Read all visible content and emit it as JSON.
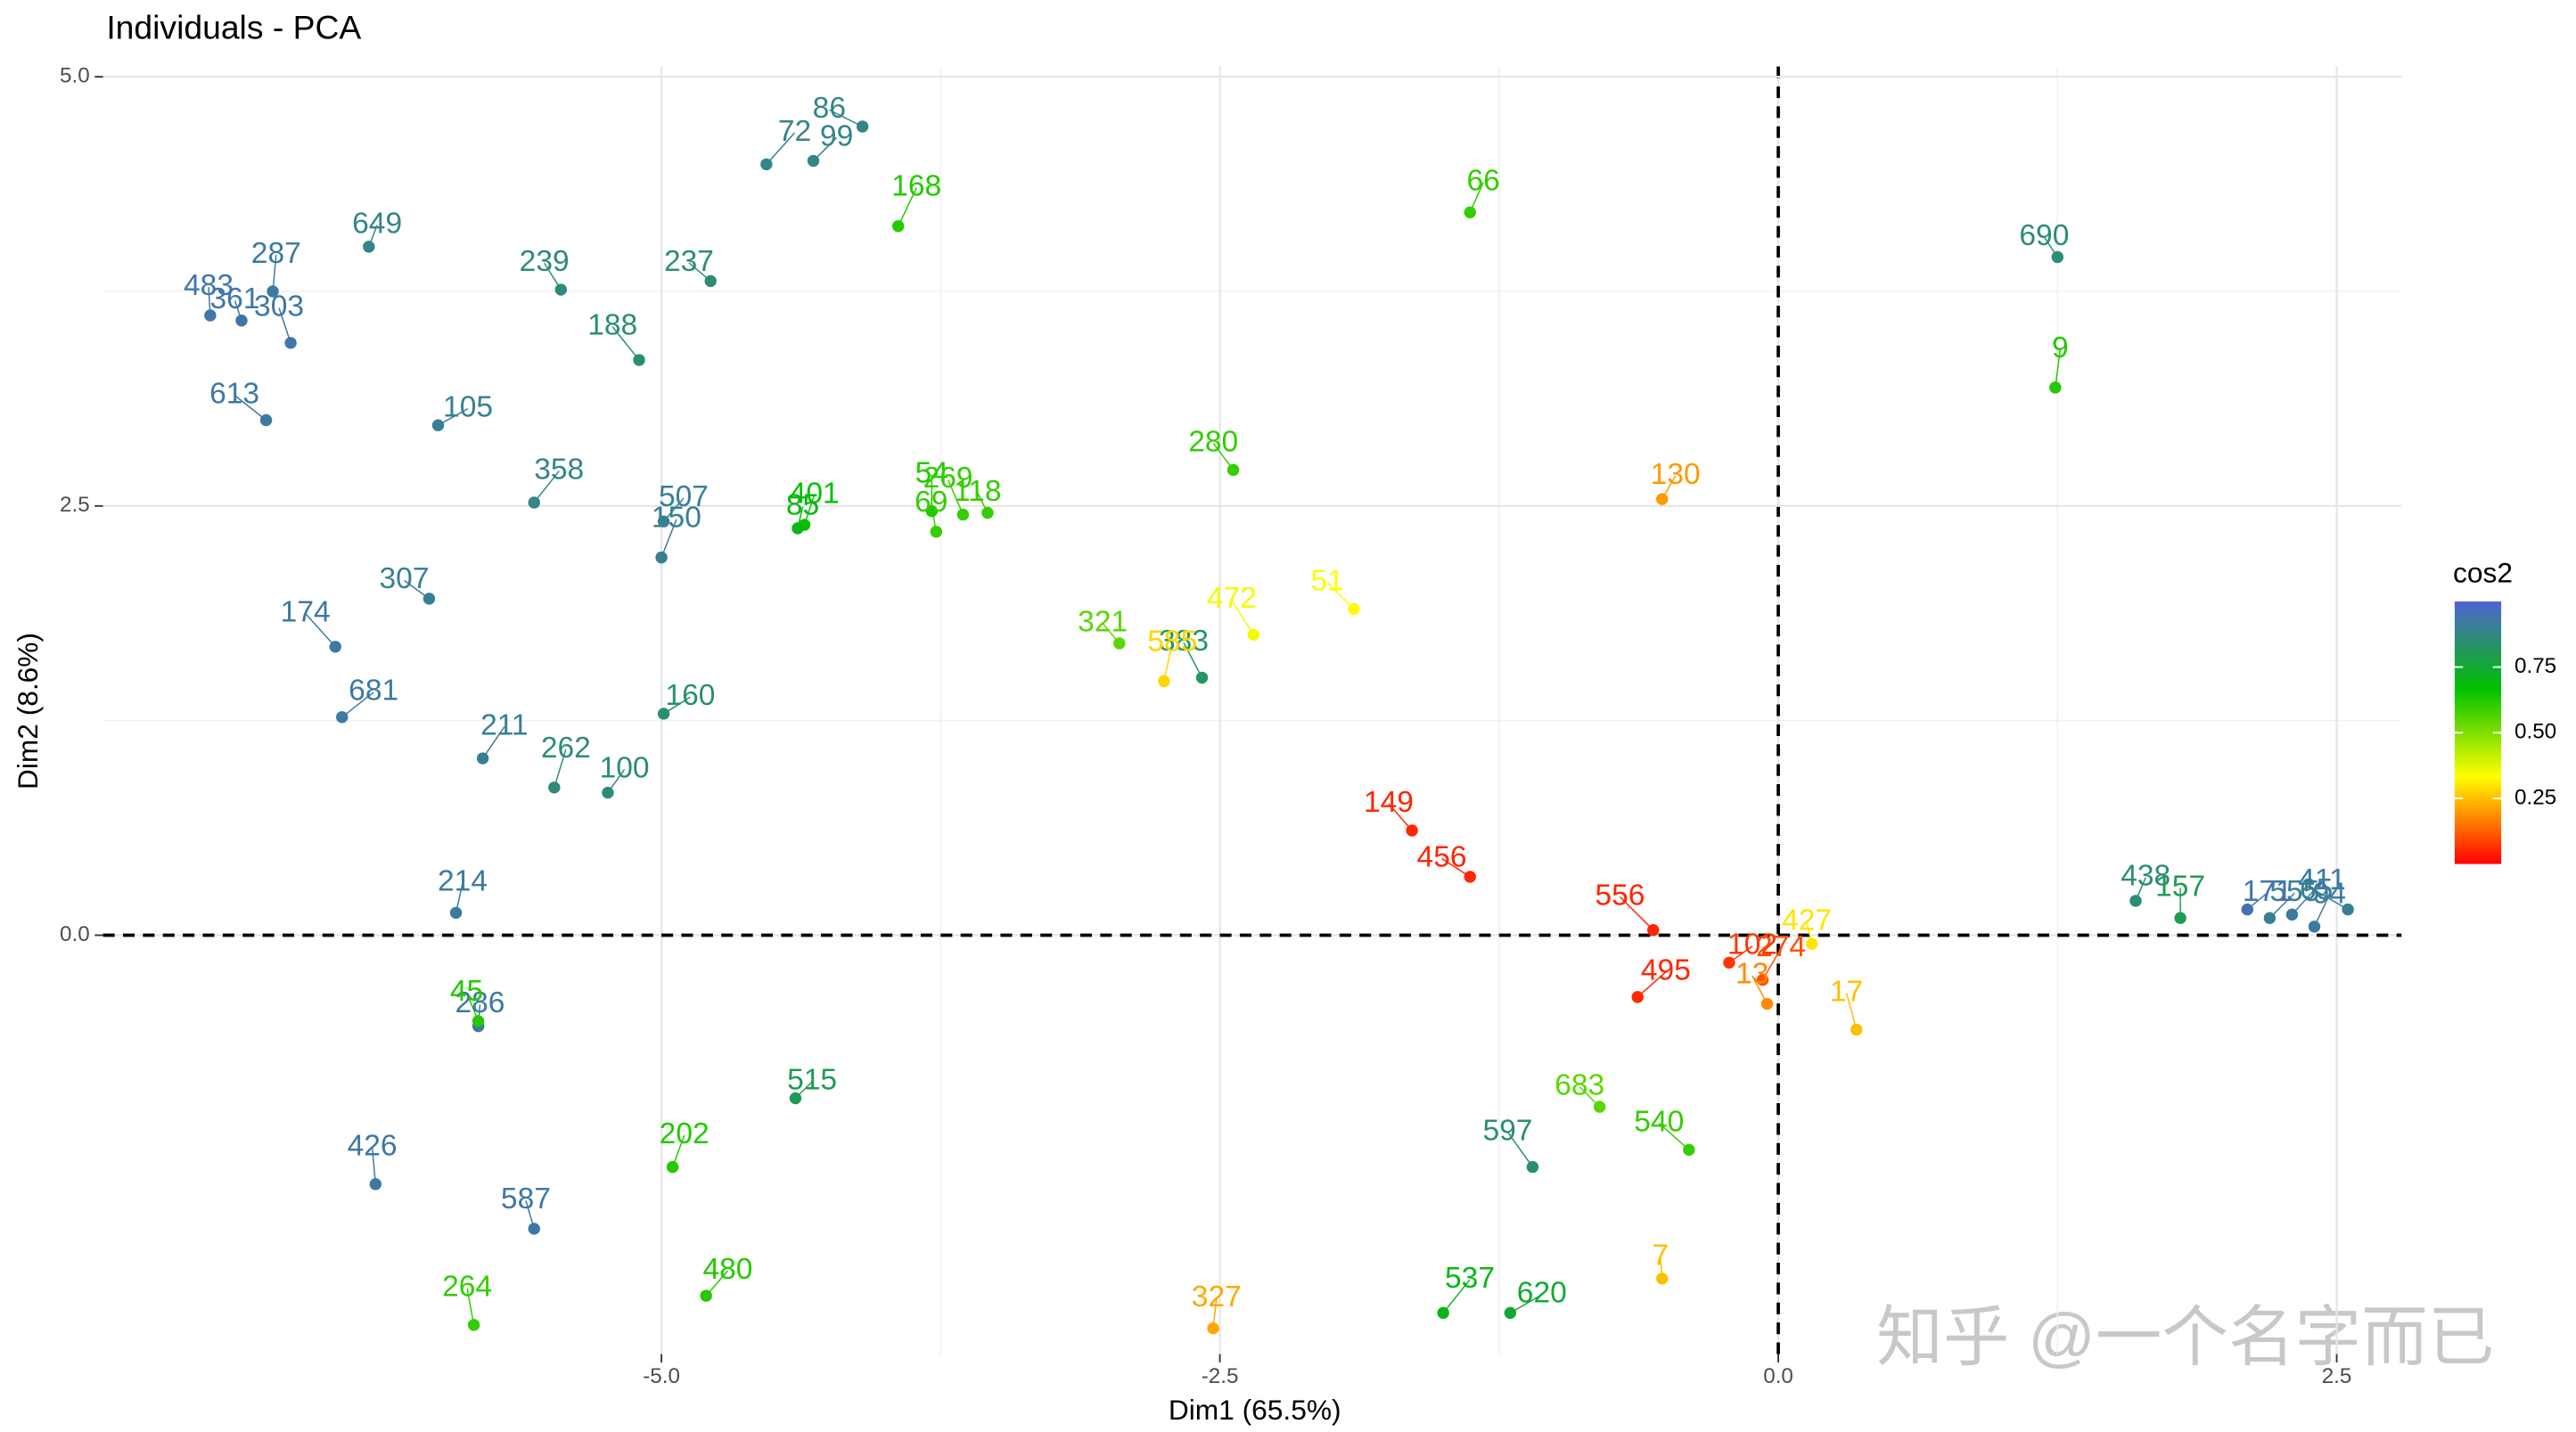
{
  "chart_data": {
    "type": "scatter",
    "title": "Individuals - PCA",
    "x_label": "Dim1 (65.5%)",
    "y_label": "Dim2 (8.6%)",
    "legend_title": "cos2",
    "watermark": "知乎 @一个名字而已",
    "xlim": [
      -7.5,
      2.79
    ],
    "ylim": [
      -2.44,
      5.06
    ],
    "xticks": [
      {
        "value": -5,
        "label": "-5.0"
      },
      {
        "value": -2.5,
        "label": "-2.5"
      },
      {
        "value": 0,
        "label": "0.0"
      },
      {
        "value": 2.5,
        "label": "2.5"
      }
    ],
    "yticks": [
      {
        "value": 0,
        "label": "0.0"
      },
      {
        "value": 2.5,
        "label": "2.5"
      },
      {
        "value": 5,
        "label": "5.0"
      }
    ],
    "grid": true,
    "colorlim": [
      0,
      1
    ],
    "colorticks": [
      {
        "value": 0.25,
        "label": "0.25"
      },
      {
        "value": 0.5,
        "label": "0.50"
      },
      {
        "value": 0.75,
        "label": "0.75"
      }
    ],
    "colors": [
      "#ff0000",
      "#ffff00",
      "#00c000",
      "#4f64d4"
    ],
    "labels": [
      "86",
      "72",
      "99",
      "168",
      "66",
      "649",
      "287",
      "483",
      "361",
      "303",
      "239",
      "237",
      "188",
      "613",
      "105",
      "358",
      "507",
      "150",
      "401",
      "85",
      "54",
      "69",
      "118",
      "269",
      "280",
      "307",
      "174",
      "681",
      "160",
      "211",
      "100",
      "262",
      "214",
      "286",
      "426",
      "587",
      "690",
      "383",
      "149",
      "456",
      "556",
      "495",
      "102",
      "274",
      "130",
      "585",
      "327",
      "7",
      "264",
      "45",
      "321",
      "472",
      "51",
      "65",
      "411",
      "555",
      "171",
      "94",
      "438",
      "9",
      "157",
      "427",
      "17",
      "13",
      "683",
      "597",
      "540",
      "620",
      "537",
      "480",
      "515",
      "202"
    ],
    "x": [
      -4.1,
      -4.53,
      -4.32,
      -3.94,
      -1.38,
      -6.31,
      -6.74,
      -7.02,
      -6.88,
      -6.66,
      -5.45,
      -4.78,
      -5.1,
      -6.77,
      -6.0,
      -5.57,
      -4.99,
      -5.0,
      -4.36,
      -4.39,
      -3.79,
      -3.77,
      -3.54,
      -3.65,
      -2.44,
      -6.04,
      -6.46,
      -6.43,
      -4.99,
      -5.8,
      -5.24,
      -5.48,
      -5.92,
      -5.82,
      -6.28,
      -5.57,
      1.25,
      -2.58,
      -1.64,
      -1.38,
      -0.56,
      -0.63,
      -0.22,
      -0.07,
      -0.52,
      -2.75,
      -2.53,
      -0.52,
      -5.84,
      -5.82,
      -2.95,
      -2.35,
      -1.9,
      2.55,
      2.3,
      2.2,
      2.1,
      2.4,
      1.6,
      1.24,
      1.8,
      0.15,
      0.35,
      -0.05,
      -0.8,
      -1.1,
      -0.4,
      -1.2,
      -1.5,
      -4.8,
      -4.4,
      -4.95
    ],
    "y": [
      4.71,
      4.49,
      4.51,
      4.13,
      4.21,
      4.01,
      3.75,
      3.61,
      3.58,
      3.45,
      3.76,
      3.81,
      3.35,
      3.0,
      2.97,
      2.52,
      2.41,
      2.2,
      2.39,
      2.37,
      2.47,
      2.35,
      2.46,
      2.45,
      2.71,
      1.96,
      1.68,
      1.27,
      1.29,
      1.03,
      0.83,
      0.86,
      0.13,
      -0.53,
      -1.45,
      -1.71,
      3.95,
      1.5,
      0.61,
      0.34,
      0.03,
      -0.36,
      -0.16,
      -0.26,
      2.54,
      1.48,
      -2.29,
      -2.0,
      -2.27,
      -0.5,
      1.7,
      1.75,
      1.9,
      0.15,
      0.12,
      0.1,
      0.15,
      0.05,
      0.2,
      3.19,
      0.1,
      -0.05,
      -0.55,
      -0.4,
      -1.0,
      -1.35,
      -1.25,
      -2.2,
      -2.2,
      -2.1,
      -0.95,
      -1.35
    ],
    "cos2": [
      0.88,
      0.88,
      0.88,
      0.62,
      0.6,
      0.88,
      0.92,
      0.94,
      0.93,
      0.93,
      0.86,
      0.85,
      0.84,
      0.92,
      0.9,
      0.88,
      0.9,
      0.9,
      0.66,
      0.7,
      0.62,
      0.6,
      0.6,
      0.6,
      0.6,
      0.9,
      0.92,
      0.92,
      0.84,
      0.9,
      0.86,
      0.86,
      0.92,
      0.92,
      0.93,
      0.93,
      0.85,
      0.82,
      0.05,
      0.05,
      0.05,
      0.05,
      0.07,
      0.1,
      0.2,
      0.28,
      0.22,
      0.25,
      0.6,
      0.62,
      0.55,
      0.35,
      0.33,
      0.9,
      0.92,
      0.9,
      0.95,
      0.92,
      0.85,
      0.62,
      0.8,
      0.3,
      0.25,
      0.18,
      0.55,
      0.85,
      0.6,
      0.75,
      0.7,
      0.62,
      0.8,
      0.62
    ]
  }
}
